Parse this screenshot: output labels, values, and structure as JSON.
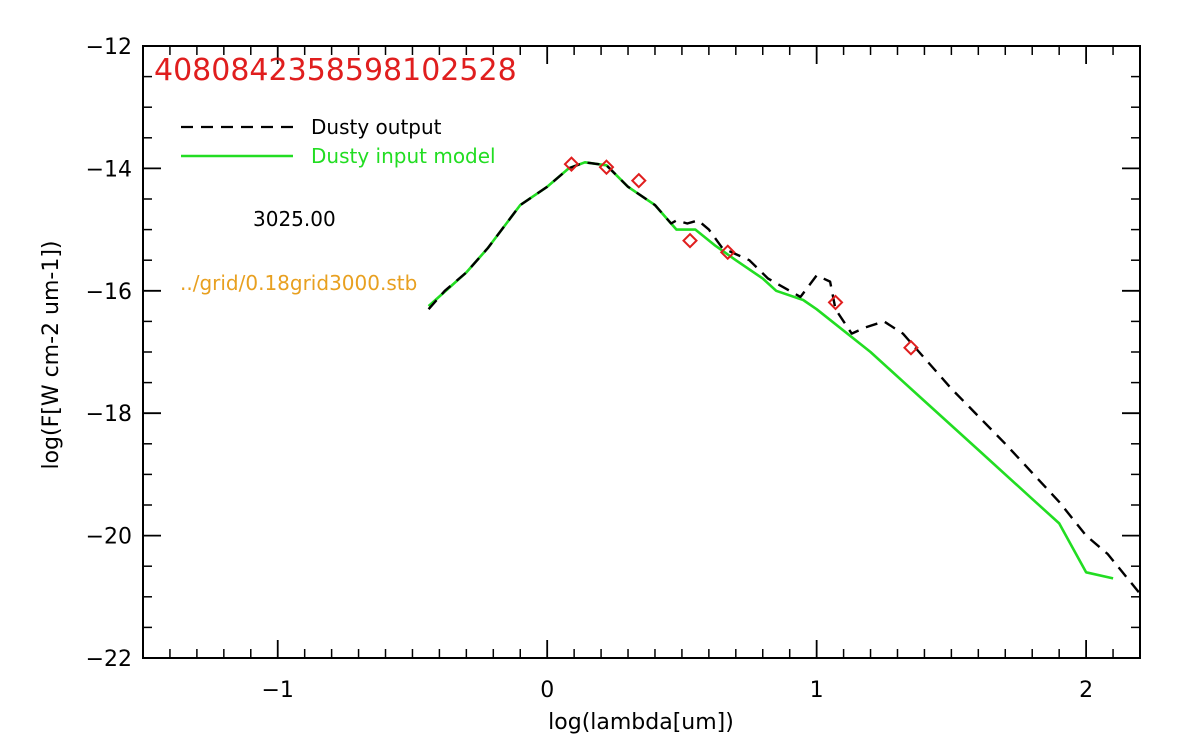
{
  "chart_data": {
    "type": "line",
    "title": "4080842358598102528",
    "xlabel": "log(lambda[um])",
    "ylabel": "log(F[W cm-2 um-1])",
    "xlim": [
      -1.5,
      2.2
    ],
    "ylim": [
      -22,
      -12
    ],
    "x_ticks": [
      -1,
      0,
      1,
      2
    ],
    "x_tick_labels": [
      "−1",
      "0",
      "1",
      "2"
    ],
    "x_minor_step": 0.1,
    "y_ticks": [
      -22,
      -20,
      -18,
      -16,
      -14,
      -12
    ],
    "y_tick_labels": [
      "−22",
      "−20",
      "−18",
      "−16",
      "−14",
      "−12"
    ],
    "y_minor_step": 0.5,
    "grid": false,
    "legend_position": "top-left",
    "annotations": [
      {
        "text": "3025.00",
        "color": "#000000"
      },
      {
        "text": "../grid/0.18grid3000.stb",
        "color": "#e8a020"
      }
    ],
    "series": [
      {
        "name": "Dusty output",
        "color": "#000000",
        "dashed": true,
        "points": [
          [
            -0.44,
            -16.3
          ],
          [
            -0.38,
            -16.0
          ],
          [
            -0.3,
            -15.7
          ],
          [
            -0.22,
            -15.3
          ],
          [
            -0.1,
            -14.6
          ],
          [
            0.0,
            -14.3
          ],
          [
            0.08,
            -14.0
          ],
          [
            0.14,
            -13.9
          ],
          [
            0.22,
            -13.95
          ],
          [
            0.3,
            -14.3
          ],
          [
            0.4,
            -14.6
          ],
          [
            0.46,
            -14.9
          ],
          [
            0.48,
            -14.85
          ],
          [
            0.52,
            -14.9
          ],
          [
            0.56,
            -14.85
          ],
          [
            0.6,
            -15.0
          ],
          [
            0.65,
            -15.3
          ],
          [
            0.7,
            -15.4
          ],
          [
            0.75,
            -15.5
          ],
          [
            0.82,
            -15.8
          ],
          [
            0.9,
            -16.0
          ],
          [
            0.94,
            -16.1
          ],
          [
            1.0,
            -15.75
          ],
          [
            1.05,
            -15.85
          ],
          [
            1.07,
            -16.3
          ],
          [
            1.1,
            -16.5
          ],
          [
            1.13,
            -16.7
          ],
          [
            1.18,
            -16.6
          ],
          [
            1.25,
            -16.5
          ],
          [
            1.32,
            -16.7
          ],
          [
            1.5,
            -17.6
          ],
          [
            1.7,
            -18.5
          ],
          [
            1.9,
            -19.45
          ],
          [
            2.0,
            -20.0
          ],
          [
            2.08,
            -20.3
          ],
          [
            2.2,
            -20.95
          ]
        ]
      },
      {
        "name": "Dusty input model",
        "color": "#22dd22",
        "dashed": false,
        "points": [
          [
            -0.44,
            -16.25
          ],
          [
            -0.3,
            -15.7
          ],
          [
            -0.22,
            -15.3
          ],
          [
            -0.1,
            -14.6
          ],
          [
            0.0,
            -14.3
          ],
          [
            0.08,
            -14.0
          ],
          [
            0.14,
            -13.9
          ],
          [
            0.22,
            -13.95
          ],
          [
            0.3,
            -14.3
          ],
          [
            0.4,
            -14.6
          ],
          [
            0.46,
            -14.9
          ],
          [
            0.48,
            -15.0
          ],
          [
            0.55,
            -15.0
          ],
          [
            0.62,
            -15.25
          ],
          [
            0.7,
            -15.5
          ],
          [
            0.8,
            -15.8
          ],
          [
            0.85,
            -16.0
          ],
          [
            0.95,
            -16.15
          ],
          [
            1.0,
            -16.3
          ],
          [
            1.2,
            -17.0
          ],
          [
            1.4,
            -17.8
          ],
          [
            1.6,
            -18.6
          ],
          [
            1.8,
            -19.4
          ],
          [
            1.9,
            -19.8
          ],
          [
            1.95,
            -20.2
          ],
          [
            2.0,
            -20.6
          ],
          [
            2.1,
            -20.7
          ]
        ]
      },
      {
        "name": "",
        "color": "#e01e1e",
        "marker": "diamond",
        "points": [
          [
            0.09,
            -13.93
          ],
          [
            0.22,
            -13.98
          ],
          [
            0.34,
            -14.2
          ],
          [
            0.53,
            -15.18
          ],
          [
            0.67,
            -15.37
          ],
          [
            1.07,
            -16.19
          ],
          [
            1.35,
            -16.93
          ]
        ]
      }
    ],
    "legend": [
      {
        "label": "Dusty output",
        "color": "#000000",
        "dashed": true
      },
      {
        "label": "Dusty input model",
        "color": "#22dd22",
        "dashed": false
      }
    ]
  }
}
